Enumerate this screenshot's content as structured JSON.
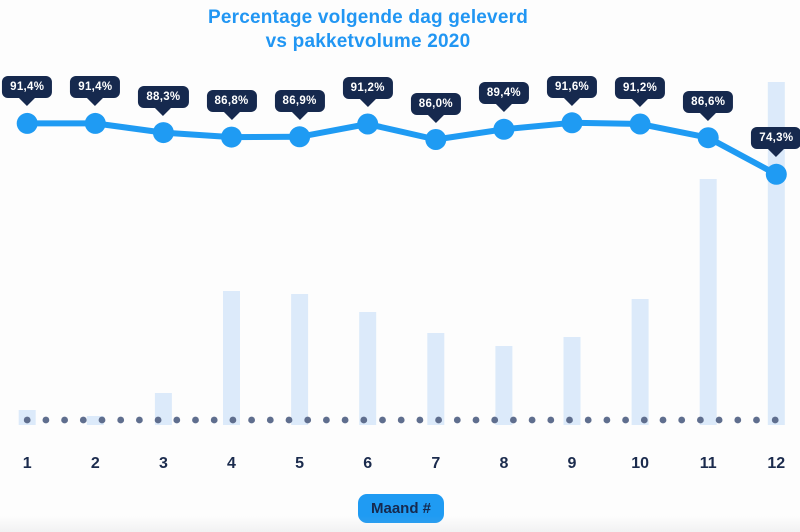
{
  "title": {
    "line1": "Percentage volgende dag geleverd",
    "line2": "vs pakketvolume 2020"
  },
  "x_axis": {
    "label": "Maand #",
    "ticks": [
      "1",
      "2",
      "3",
      "4",
      "5",
      "6",
      "7",
      "8",
      "9",
      "10",
      "11",
      "12"
    ]
  },
  "chart_data": {
    "type": "combo-line-bar",
    "title": "Percentage volgende dag geleverd vs pakketvolume 2020",
    "xlabel": "Maand #",
    "ylabel": "",
    "legend": "none",
    "grid": "dotted baseline only",
    "categories": [
      1,
      2,
      3,
      4,
      5,
      6,
      7,
      8,
      9,
      10,
      11,
      12
    ],
    "series": [
      {
        "name": "Percentage volgende dag geleverd",
        "type": "line",
        "values": [
          91.4,
          91.4,
          88.3,
          86.8,
          86.9,
          91.2,
          86.0,
          89.4,
          91.6,
          91.2,
          86.6,
          74.3
        ],
        "labels": [
          "91,4%",
          "91,4%",
          "88,3%",
          "86,8%",
          "86,9%",
          "91,2%",
          "86,0%",
          "89,4%",
          "91,6%",
          "91,2%",
          "86,6%",
          "74,3%"
        ],
        "unit": "%"
      },
      {
        "name": "Pakketvolume 2020",
        "type": "bar",
        "values": [
          15,
          9,
          32,
          134,
          131,
          113,
          92,
          79,
          88,
          126,
          246,
          343
        ],
        "unit": "relative height, no value axis shown"
      }
    ]
  },
  "colors": {
    "title_text": "#2196f3",
    "line": "#1f9bf3",
    "point": "#1f9bf3",
    "badge_bg": "#16294e",
    "badge_text": "#ffffff",
    "bar": "#dceafa",
    "baseline_dot": "#5f6e8e",
    "x_label_text": "#1b2b4d",
    "axis_badge_bg": "#1f9bf3",
    "axis_badge_text": "#16294e",
    "background": "#fdfdfd"
  }
}
